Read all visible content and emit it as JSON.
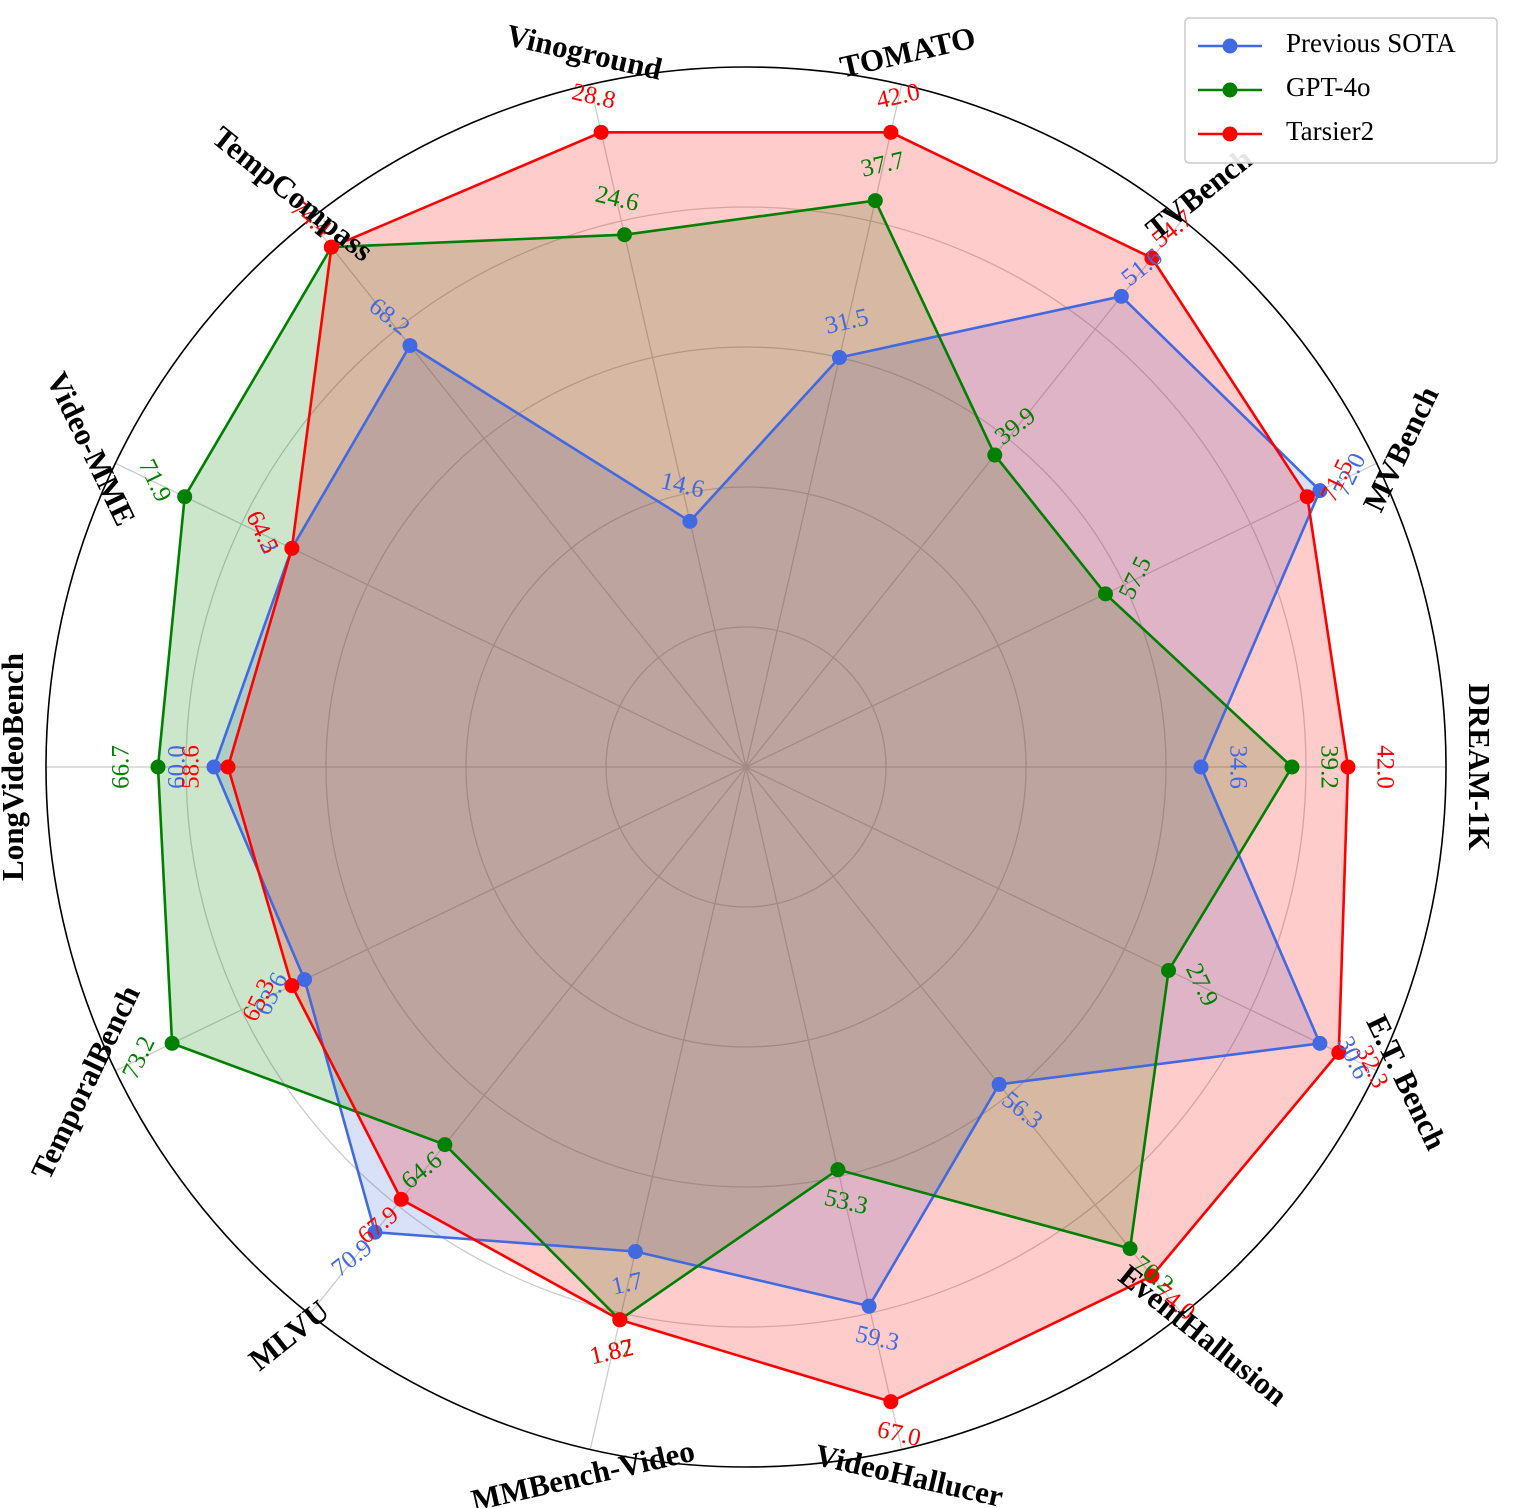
{
  "chart_data": {
    "type": "radar",
    "categories": [
      "DREAM-1K",
      "MVBench",
      "TVBench",
      "TOMATO",
      "Vinoground",
      "TempCompass",
      "Video-MME",
      "LongVideoBench",
      "TemporalBench",
      "MLVU",
      "MMBench-Video",
      "VideoHallucer",
      "EventHallusion",
      "E.T. Bench"
    ],
    "series": [
      {
        "name": "Previous SOTA",
        "color": "#4169e1",
        "fill_opacity": 0.2,
        "values": [
          34.6,
          72.0,
          51.6,
          31.5,
          14.6,
          68.2,
          64.2,
          60.0,
          63.6,
          70.9,
          1.7,
          59.3,
          56.3,
          30.6
        ],
        "labels": [
          "34.6",
          "72.0",
          "51.6",
          "31.5",
          "14.6",
          "68.2",
          "64.2",
          "60.0",
          "63.6",
          "70.9",
          "1.7",
          "59.3",
          "56.3",
          "30.6"
        ],
        "normalized": [
          0.65,
          0.91,
          0.86,
          0.6,
          0.36,
          0.77,
          0.72,
          0.76,
          0.7,
          0.85,
          0.71,
          0.79,
          0.58,
          0.91
        ]
      },
      {
        "name": "GPT-4o",
        "color": "#008000",
        "fill_opacity": 0.2,
        "values": [
          39.2,
          57.5,
          39.9,
          37.7,
          24.6,
          74.1,
          71.9,
          66.7,
          73.2,
          64.6,
          1.87,
          53.3,
          70.2,
          27.9
        ],
        "labels": [
          "39.2",
          "57.5",
          "39.9",
          "37.7",
          "24.6",
          "74.1",
          "71.9",
          "66.7",
          "73.2",
          "64.6",
          "1.87",
          "53.3",
          "70.2",
          "27.9"
        ],
        "normalized": [
          0.78,
          0.57,
          0.57,
          0.83,
          0.78,
          0.95,
          0.89,
          0.84,
          0.91,
          0.69,
          0.81,
          0.59,
          0.88,
          0.67
        ]
      },
      {
        "name": "Tarsier2",
        "color": "#ff0000",
        "fill_opacity": 0.2,
        "values": [
          42.0,
          71.5,
          54.7,
          42.0,
          28.8,
          74.4,
          64.5,
          58.6,
          65.3,
          67.9,
          1.82,
          67.0,
          74.0,
          32.3
        ],
        "labels": [
          "42.0",
          "71.5",
          "54.7",
          "42.0",
          "28.8",
          "74.4",
          "64.5",
          "58.6",
          "65.3",
          "67.9",
          "1.82",
          "67.0",
          "74.0",
          "32.3"
        ],
        "normalized": [
          0.86,
          0.89,
          0.93,
          0.93,
          0.93,
          0.95,
          0.72,
          0.74,
          0.72,
          0.79,
          0.81,
          0.93,
          0.93,
          0.94
        ]
      }
    ],
    "grid": true,
    "legend": "top-right"
  }
}
